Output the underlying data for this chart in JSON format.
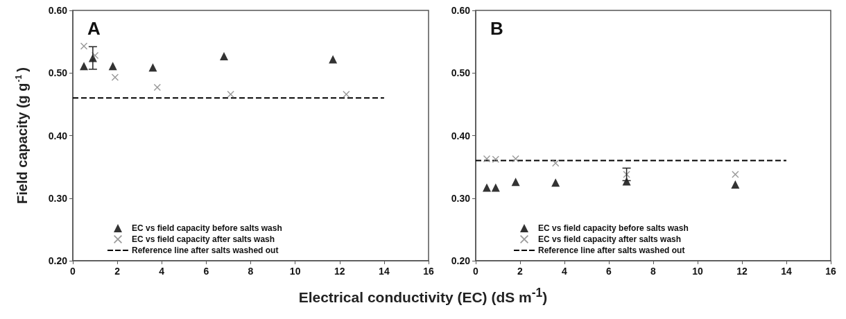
{
  "chart_data": [
    {
      "type": "scatter",
      "title": "A",
      "ylabel": "Field capacity (g g$^{-1}$)",
      "xlabel": "Electrical conductivity (EC) (dS m$^{-1}$)",
      "xlim": [
        0,
        16
      ],
      "xticks": [
        0,
        2,
        4,
        6,
        8,
        10,
        12,
        14,
        16
      ],
      "ylim": [
        0.2,
        0.6
      ],
      "yticks": [
        {
          "value": 0.2,
          "label": "0.20"
        },
        {
          "value": 0.3,
          "label": "0.30"
        },
        {
          "value": 0.4,
          "label": "0.40"
        },
        {
          "value": 0.5,
          "label": "0.50"
        },
        {
          "value": 0.6,
          "label": "0.60"
        }
      ],
      "grid": false,
      "legend": "bottom left",
      "series": [
        {
          "name": "EC vs field capacity before salts wash",
          "color": "#000000",
          "marker": "triangle",
          "x": [
            0.5,
            0.9,
            1.8,
            3.6,
            6.8,
            11.7
          ],
          "values": [
            0.511,
            0.524,
            0.511,
            0.509,
            0.527,
            0.522
          ],
          "errors": [
            null,
            0.018,
            null,
            null,
            null,
            null
          ]
        },
        {
          "name": "EC vs field capacity after salts wash",
          "color": "#808080",
          "marker": "cross",
          "x": [
            0.5,
            1.0,
            1.9,
            3.8,
            7.1,
            12.3
          ],
          "values": [
            0.543,
            0.528,
            0.493,
            0.477,
            0.466,
            0.466
          ]
        },
        {
          "name": "Reference line after salts washed out",
          "type": "line",
          "color": "#000000",
          "marker": "none",
          "line_style": "dashed",
          "x": [
            0,
            14
          ],
          "values": [
            0.46,
            0.46
          ]
        }
      ]
    },
    {
      "type": "scatter",
      "title": "B",
      "xlim": [
        0,
        16
      ],
      "xticks": [
        0,
        2,
        4,
        6,
        8,
        10,
        12,
        14,
        16
      ],
      "ylim": [
        0.2,
        0.6
      ],
      "yticks": [
        {
          "value": 0.2,
          "label": "0.20"
        },
        {
          "value": 0.3,
          "label": "0.30"
        },
        {
          "value": 0.4,
          "label": "0.40"
        },
        {
          "value": 0.5,
          "label": "0.50"
        },
        {
          "value": 0.6,
          "label": "0.60"
        }
      ],
      "grid": false,
      "legend": "bottom",
      "series": [
        {
          "name": "EC vs field capacity before salts wash",
          "color": "#000000",
          "marker": "triangle",
          "x": [
            0.5,
            0.9,
            1.8,
            3.6,
            6.8,
            11.7
          ],
          "values": [
            0.317,
            0.317,
            0.326,
            0.325,
            0.327,
            0.322
          ]
        },
        {
          "name": "EC vs field capacity after salts wash",
          "color": "#808080",
          "marker": "cross",
          "x": [
            0.5,
            0.9,
            1.8,
            3.6,
            6.8,
            11.7
          ],
          "values": [
            0.363,
            0.362,
            0.363,
            0.356,
            0.338,
            0.338
          ],
          "errors": [
            null,
            null,
            null,
            null,
            0.01,
            null
          ]
        },
        {
          "name": "Reference line after salts washed out",
          "type": "line",
          "color": "#000000",
          "marker": "none",
          "line_style": "dashed",
          "x": [
            0,
            14
          ],
          "values": [
            0.36,
            0.36
          ]
        }
      ]
    }
  ]
}
